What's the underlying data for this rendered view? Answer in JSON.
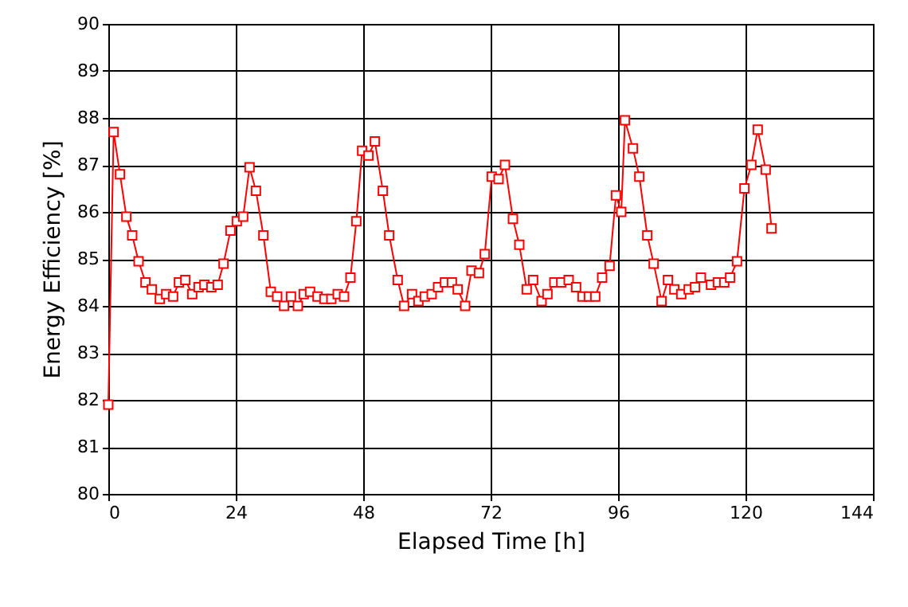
{
  "chart_data": {
    "type": "line",
    "xlabel": "Elapsed Time [h]",
    "ylabel": "Energy Efficiency [%]",
    "xlim": [
      0,
      144
    ],
    "xticks": [
      0,
      24,
      48,
      72,
      96,
      120,
      144
    ],
    "ylim": [
      80,
      90
    ],
    "yticks": [
      80,
      81,
      82,
      83,
      84,
      85,
      86,
      87,
      88,
      89,
      90
    ],
    "grid": true,
    "marker": "square",
    "line_style": "solid",
    "series": [
      {
        "color": "#ff0000",
        "x": [
          0,
          1.0,
          2.2,
          3.4,
          4.5,
          5.7,
          7.0,
          8.2,
          9.7,
          10.9,
          12.2,
          13.3,
          14.5,
          15.8,
          17.0,
          18.1,
          19.4,
          20.6,
          21.7,
          23.0,
          24.2,
          25.4,
          26.6,
          27.8,
          29.2,
          30.6,
          31.8,
          33.1,
          34.4,
          35.7,
          36.8,
          38.0,
          39.4,
          40.7,
          42.0,
          43.2,
          44.4,
          45.6,
          46.7,
          47.8,
          49.0,
          50.2,
          51.7,
          52.9,
          54.5,
          55.7,
          57.2,
          58.4,
          59.6,
          60.9,
          62.1,
          63.4,
          64.7,
          65.8,
          67.2,
          68.4,
          69.8,
          70.9,
          72.2,
          73.5,
          74.7,
          76.2,
          77.4,
          78.8,
          80.0,
          81.6,
          82.7,
          84.0,
          85.3,
          86.7,
          88.1,
          89.3,
          90.5,
          91.7,
          93.0,
          94.4,
          95.6,
          96.6,
          97.3,
          98.8,
          100.0,
          101.5,
          102.7,
          104.2,
          105.4,
          106.6,
          107.9,
          109.3,
          110.5,
          111.6,
          113.5,
          114.8,
          116.0,
          117.1,
          118.4,
          119.8,
          121.1,
          122.3,
          123.8,
          124.9
        ],
        "values": [
          81.9,
          87.7,
          86.8,
          85.9,
          85.5,
          84.95,
          84.5,
          84.35,
          84.15,
          84.25,
          84.2,
          84.5,
          84.55,
          84.25,
          84.4,
          84.45,
          84.4,
          84.45,
          84.9,
          85.6,
          85.8,
          85.9,
          86.95,
          86.45,
          85.5,
          84.3,
          84.2,
          84.0,
          84.2,
          84.0,
          84.25,
          84.3,
          84.2,
          84.15,
          84.15,
          84.25,
          84.2,
          84.6,
          85.8,
          87.3,
          87.2,
          87.5,
          86.45,
          85.5,
          84.55,
          84.0,
          84.25,
          84.1,
          84.2,
          84.25,
          84.4,
          84.5,
          84.5,
          84.35,
          84.0,
          84.75,
          84.7,
          85.1,
          86.75,
          86.7,
          87.0,
          85.85,
          85.3,
          84.35,
          84.55,
          84.1,
          84.25,
          84.5,
          84.5,
          84.55,
          84.4,
          84.2,
          84.2,
          84.2,
          84.6,
          84.85,
          86.35,
          86.0,
          87.95,
          87.35,
          86.75,
          85.5,
          84.9,
          84.1,
          84.55,
          84.35,
          84.25,
          84.35,
          84.4,
          84.6,
          84.45,
          84.5,
          84.5,
          84.6,
          84.95,
          86.5,
          87.0,
          87.75,
          86.9,
          85.65
        ]
      }
    ]
  }
}
